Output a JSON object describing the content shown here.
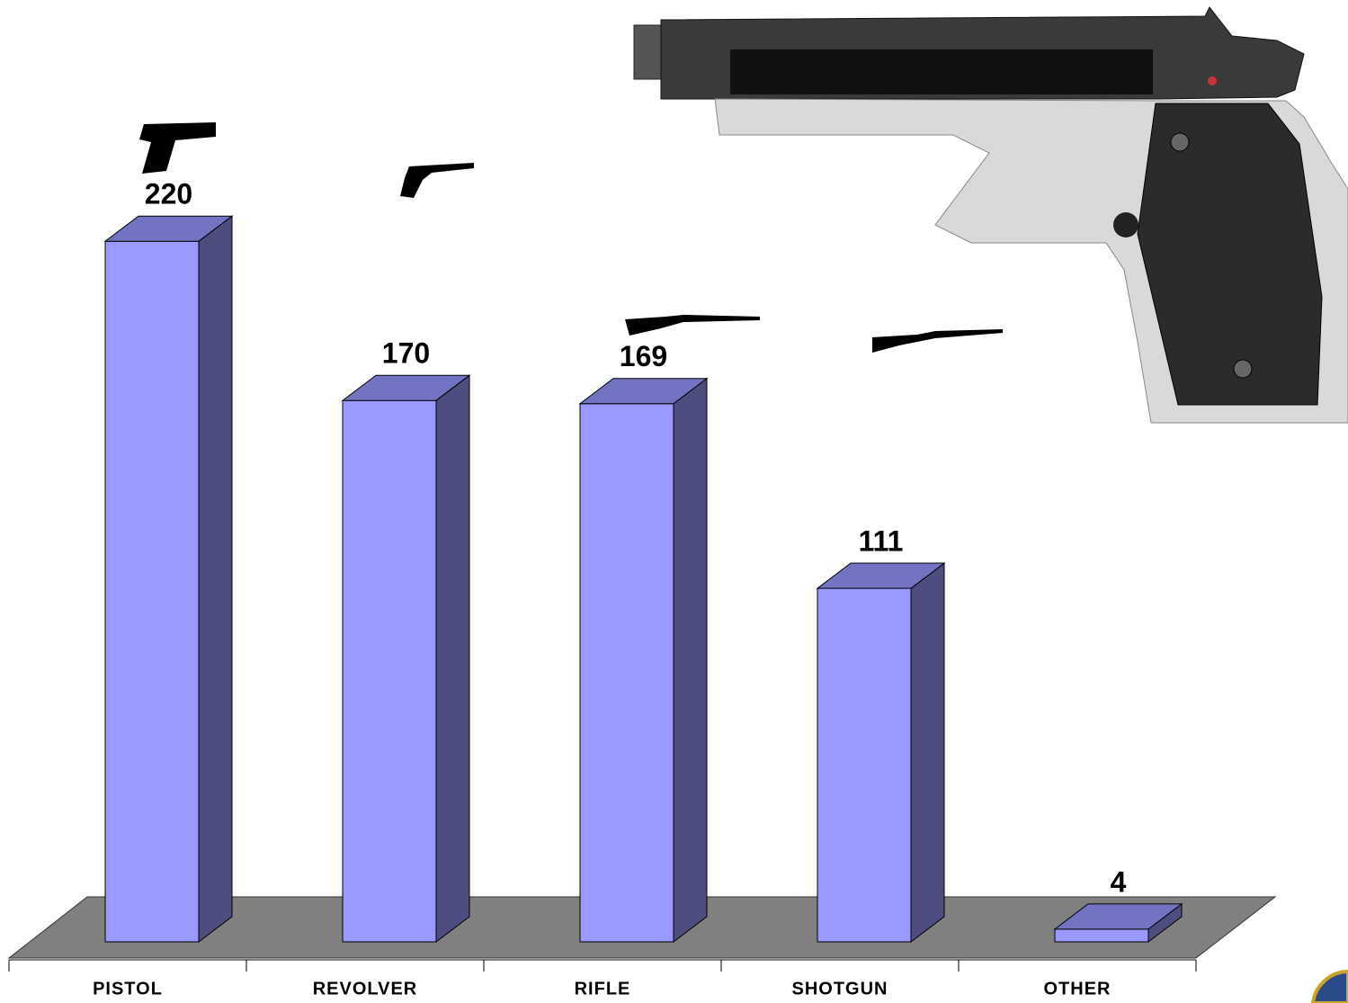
{
  "chart_data": {
    "type": "bar3d",
    "categories": [
      "PISTOL",
      "REVOLVER",
      "RIFLE",
      "SHOTGUN",
      "OTHER"
    ],
    "values": [
      220,
      170,
      169,
      111,
      4
    ],
    "color": "#9999ff"
  }
}
